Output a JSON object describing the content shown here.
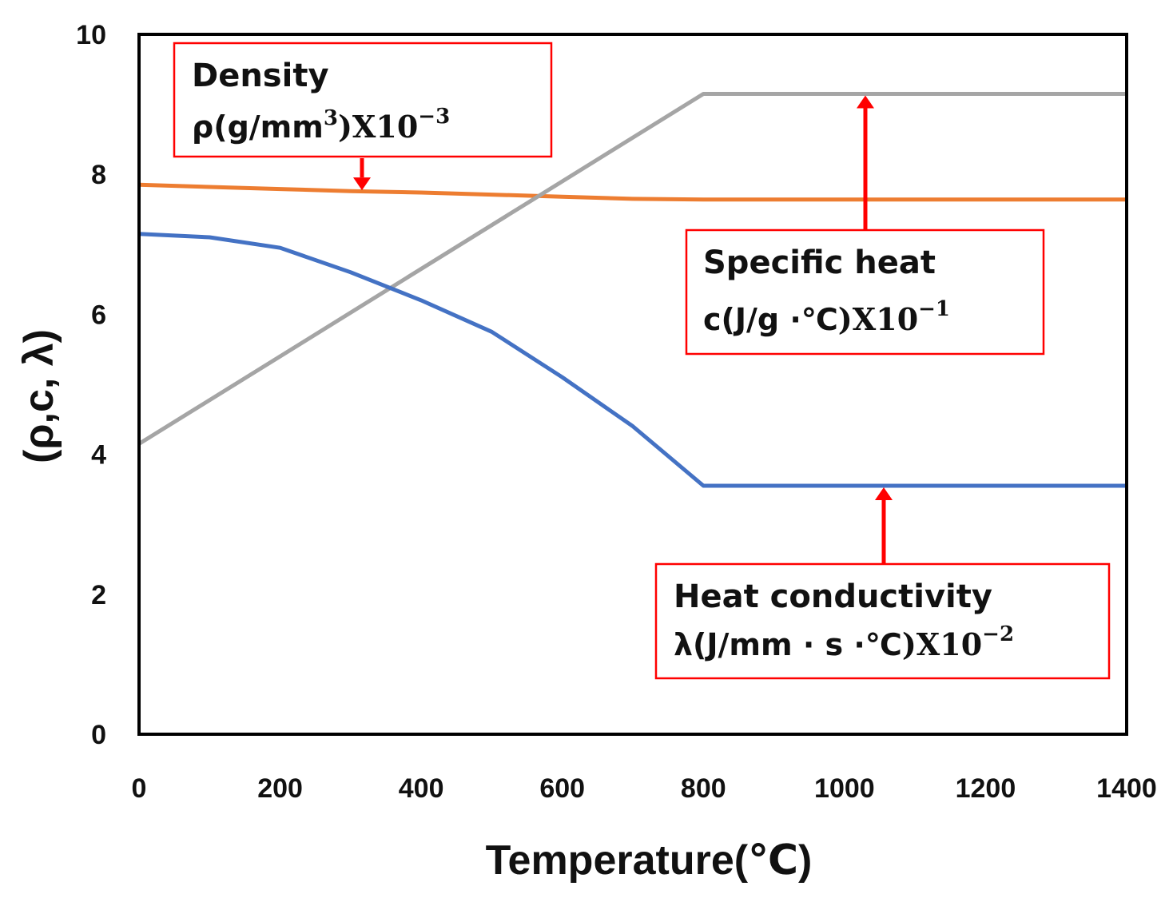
{
  "chart_data": {
    "type": "line",
    "xlabel": "Temperature(℃)",
    "ylabel": "(ρ,c, λ)",
    "xlim": [
      0,
      1400
    ],
    "ylim": [
      0,
      10
    ],
    "x_ticks": [
      "0",
      "200",
      "400",
      "600",
      "800",
      "1000",
      "1200",
      "1400"
    ],
    "y_ticks": [
      "0",
      "2",
      "4",
      "6",
      "8",
      "10"
    ],
    "grid": false,
    "series": [
      {
        "name": "Density",
        "color": "#ed7d31",
        "x": [
          0,
          100,
          200,
          300,
          400,
          500,
          600,
          700,
          800,
          900,
          1000,
          1100,
          1200,
          1300,
          1400
        ],
        "y": [
          7.85,
          7.82,
          7.79,
          7.76,
          7.74,
          7.71,
          7.68,
          7.65,
          7.64,
          7.64,
          7.64,
          7.64,
          7.64,
          7.64,
          7.64
        ]
      },
      {
        "name": "Specific heat",
        "color": "#a5a5a5",
        "x": [
          0,
          800,
          1400
        ],
        "y": [
          4.15,
          9.15,
          9.15
        ]
      },
      {
        "name": "Heat conductivity",
        "color": "#4472c4",
        "x": [
          0,
          100,
          200,
          300,
          400,
          500,
          600,
          700,
          800,
          1400
        ],
        "y": [
          7.15,
          7.1,
          6.95,
          6.6,
          6.2,
          5.75,
          5.1,
          4.4,
          3.55,
          3.55
        ]
      }
    ],
    "annotations": [
      {
        "series": "Density",
        "title": "Density",
        "unit": "ρ(g/mm",
        "unit_sup": "3",
        "tail": ")Ⅹ10",
        "exponent": "−3",
        "arrow_target": {
          "x": 318,
          "y": 7.75
        }
      },
      {
        "series": "Specific heat",
        "title": "Specific heat",
        "unit": "c(J/g ·℃",
        "unit_sup": "",
        "tail": ")Ⅹ10",
        "exponent": "−1",
        "arrow_target": {
          "x": 1030,
          "y": 9.15
        }
      },
      {
        "series": "Heat conductivity",
        "title": "Heat  conductivity",
        "unit": "λ(J/mm · s ·℃",
        "unit_sup": "",
        "tail": ")Ⅹ10",
        "exponent": "−2",
        "arrow_target": {
          "x": 1057,
          "y": 3.55
        }
      }
    ],
    "arrow_color": "#ff0000",
    "box_color": "#ff0000"
  }
}
